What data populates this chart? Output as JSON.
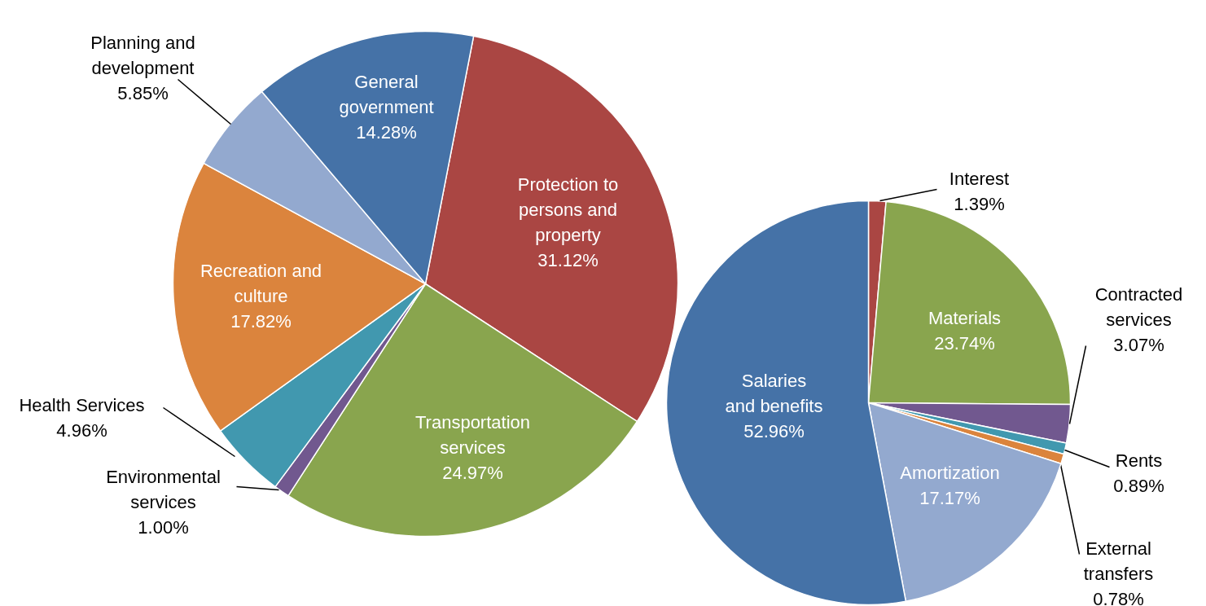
{
  "chart_data": [
    {
      "type": "pie",
      "categories": [
        "Protection to persons and property",
        "Transportation services",
        "Environmental services",
        "Health Services",
        "Recreation and culture",
        "Planning and development",
        "General government"
      ],
      "values": [
        31.12,
        24.97,
        1.0,
        4.96,
        17.82,
        5.85,
        14.28
      ],
      "value_labels": [
        "31.12%",
        "24.97%",
        "1.00%",
        "4.96%",
        "17.82%",
        "5.85%",
        "14.28%"
      ],
      "colors": [
        "#aa4643",
        "#89a54e",
        "#71588f",
        "#4198af",
        "#db843d",
        "#93a9cf",
        "#4572a7"
      ]
    },
    {
      "type": "pie",
      "categories": [
        "Interest",
        "Materials",
        "Contracted services",
        "Rents",
        "External transfers",
        "Amortization",
        "Salaries and benefits"
      ],
      "values": [
        1.39,
        23.74,
        3.07,
        0.89,
        0.78,
        17.17,
        52.96
      ],
      "value_labels": [
        "1.39%",
        "23.74%",
        "3.07%",
        "0.89%",
        "0.78%",
        "17.17%",
        "52.96%"
      ],
      "colors": [
        "#aa4643",
        "#89a54e",
        "#71588f",
        "#4198af",
        "#db843d",
        "#93a9cf",
        "#4572a7"
      ]
    }
  ]
}
